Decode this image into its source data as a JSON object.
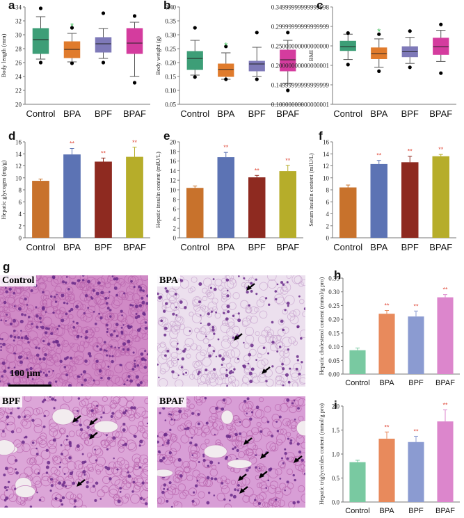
{
  "panels": {
    "a": "a",
    "b": "b",
    "c": "c",
    "d": "d",
    "e": "e",
    "f": "f",
    "g": "g",
    "h": "h",
    "i": "i"
  },
  "colors": {
    "control": "#3d9e77",
    "bpa": "#e07b2c",
    "bpf": "#7e79b8",
    "bpaf": "#d43c9e",
    "bar_control": "#c8722c",
    "bar_bpa": "#5c73b4",
    "bar_bpf": "#8e2a20",
    "bar_bpaf": "#b6ad2a",
    "lipid_control": "#79c9a1",
    "lipid_bpa": "#e88a5c",
    "lipid_bpf": "#8b9bd1",
    "lipid_bpaf": "#dc86cc",
    "sig_green": "#3fbf5a",
    "sig_red": "#e04a3a"
  },
  "histology": {
    "control_label": "Control",
    "bpa_label": "BPA",
    "bpf_label": "BPF",
    "bpaf_label": "BPAF",
    "scale_label": "100 μm"
  },
  "chart_data": [
    {
      "id": "a",
      "type": "box",
      "categories": [
        "Control",
        "BPA",
        "BPF",
        "BPAF"
      ],
      "ylabel": "Body length (mm)",
      "ylim": [
        20,
        34
      ],
      "yticks": [
        20,
        22,
        24,
        26,
        28,
        30,
        32,
        34
      ],
      "boxes": [
        {
          "q1": 27.3,
          "median": 29.3,
          "q3": 30.9,
          "whisker_low": 26.5,
          "whisker_high": 32.6,
          "outliers": [
            33.8,
            26.0
          ],
          "sig": ""
        },
        {
          "q1": 26.7,
          "median": 27.9,
          "q3": 29.0,
          "whisker_low": 26.1,
          "whisker_high": 30.2,
          "outliers": [
            31.0,
            25.9
          ],
          "sig": "*"
        },
        {
          "q1": 27.5,
          "median": 28.7,
          "q3": 29.6,
          "whisker_low": 26.6,
          "whisker_high": 30.9,
          "outliers": [
            33.1,
            26.0
          ],
          "sig": ""
        },
        {
          "q1": 27.3,
          "median": 28.8,
          "q3": 30.9,
          "whisker_low": 24.0,
          "whisker_high": 31.8,
          "outliers": [
            32.7,
            23.1
          ],
          "sig": ""
        }
      ]
    },
    {
      "id": "b",
      "type": "box",
      "categories": [
        "Control",
        "BPA",
        "BPF",
        "BPAF"
      ],
      "ylabel": "Body weight (g)",
      "ylim": [
        0.05,
        0.4
      ],
      "yticks": [
        0.05,
        0.1,
        0.15,
        0.2,
        0.25,
        0.3,
        0.35,
        0.4
      ],
      "boxes": [
        {
          "q1": 0.175,
          "median": 0.215,
          "q3": 0.24,
          "whisker_low": 0.155,
          "whisker_high": 0.28,
          "outliers": [
            0.325,
            0.148
          ],
          "sig": ""
        },
        {
          "q1": 0.15,
          "median": 0.175,
          "q3": 0.195,
          "whisker_low": 0.14,
          "whisker_high": 0.235,
          "outliers": [
            0.258,
            0.14
          ],
          "sig": "*"
        },
        {
          "q1": 0.17,
          "median": 0.195,
          "q3": 0.205,
          "whisker_low": 0.15,
          "whisker_high": 0.255,
          "outliers": [
            0.308,
            0.14
          ],
          "sig": ""
        },
        {
          "q1": 0.17,
          "median": 0.21,
          "q3": 0.245,
          "whisker_low": 0.125,
          "whisker_high": 0.28,
          "outliers": [
            0.308,
            0.1
          ],
          "sig": ""
        }
      ]
    },
    {
      "id": "c",
      "type": "box",
      "categories": [
        "Control",
        "BPA",
        "BPF",
        "BPAF"
      ],
      "ylabel": "BMI",
      "ylim": [
        0.1,
        0.35
      ],
      "yticks": [
        0.1,
        0.15,
        0.2,
        0.25,
        0.3,
        0.35
      ],
      "boxes": [
        {
          "q1": 0.238,
          "median": 0.248,
          "q3": 0.262,
          "whisker_low": 0.215,
          "whisker_high": 0.28,
          "outliers": [
            0.283,
            0.202
          ],
          "sig": ""
        },
        {
          "q1": 0.217,
          "median": 0.23,
          "q3": 0.245,
          "whisker_low": 0.195,
          "whisker_high": 0.268,
          "outliers": [
            0.28,
            0.185
          ],
          "sig": "*"
        },
        {
          "q1": 0.222,
          "median": 0.235,
          "q3": 0.248,
          "whisker_low": 0.205,
          "whisker_high": 0.272,
          "outliers": [
            0.288,
            0.195
          ],
          "sig": ""
        },
        {
          "q1": 0.228,
          "median": 0.248,
          "q3": 0.27,
          "whisker_low": 0.21,
          "whisker_high": 0.29,
          "outliers": [
            0.305,
            0.18
          ],
          "sig": ""
        }
      ]
    },
    {
      "id": "d",
      "type": "bar",
      "categories": [
        "Control",
        "BPA",
        "BPF",
        "BPAF"
      ],
      "ylabel": "Hepatic glycogen (mg/g)",
      "ylim": [
        0,
        16
      ],
      "yticks": [
        0,
        2,
        4,
        6,
        8,
        10,
        12,
        14,
        16
      ],
      "values": [
        9.5,
        13.9,
        12.7,
        13.5
      ],
      "errors": [
        0.3,
        1.0,
        0.6,
        1.6
      ],
      "sig": [
        "",
        "**",
        "**",
        "**"
      ]
    },
    {
      "id": "e",
      "type": "bar",
      "categories": [
        "Control",
        "BPA",
        "BPF",
        "BPAF"
      ],
      "ylabel": "Hepatic insulin content (mIU/L)",
      "ylim": [
        0,
        20
      ],
      "yticks": [
        0,
        2,
        4,
        6,
        8,
        10,
        12,
        14,
        16,
        18,
        20
      ],
      "values": [
        10.4,
        16.8,
        12.6,
        13.9
      ],
      "errors": [
        0.4,
        1.0,
        0.4,
        1.2
      ],
      "sig": [
        "",
        "**",
        "**",
        "**"
      ]
    },
    {
      "id": "f",
      "type": "bar",
      "categories": [
        "Control",
        "BPA",
        "BPF",
        "BPAF"
      ],
      "ylabel": "Serum insulin content (mIU/L)",
      "ylim": [
        0,
        16
      ],
      "yticks": [
        0,
        2,
        4,
        6,
        8,
        10,
        12,
        14,
        16
      ],
      "values": [
        8.4,
        12.3,
        12.6,
        13.6
      ],
      "errors": [
        0.4,
        0.6,
        1.0,
        0.3
      ],
      "sig": [
        "",
        "**",
        "**",
        "**"
      ]
    },
    {
      "id": "h",
      "type": "bar",
      "categories": [
        "Control",
        "BPA",
        "BPF",
        "BPAF"
      ],
      "ylabel": "Hepatic cholesterol content (mmol/g pro)",
      "ylim": [
        0,
        0.35
      ],
      "yticks": [
        0,
        0.05,
        0.1,
        0.15,
        0.2,
        0.25,
        0.3,
        0.35
      ],
      "values": [
        0.087,
        0.22,
        0.21,
        0.28
      ],
      "errors": [
        0.008,
        0.012,
        0.02,
        0.01
      ],
      "sig": [
        "",
        "**",
        "**",
        "**"
      ]
    },
    {
      "id": "i",
      "type": "bar",
      "categories": [
        "Control",
        "BPA",
        "BPF",
        "BPAF"
      ],
      "ylabel": "Hepatic triglycerides content (mmol/g pro)",
      "ylim": [
        0,
        2.0
      ],
      "yticks": [
        0,
        0.5,
        1.0,
        1.5,
        2.0
      ],
      "values": [
        0.83,
        1.32,
        1.25,
        1.68
      ],
      "errors": [
        0.04,
        0.14,
        0.12,
        0.24
      ],
      "sig": [
        "",
        "**",
        "**",
        "**"
      ]
    }
  ]
}
